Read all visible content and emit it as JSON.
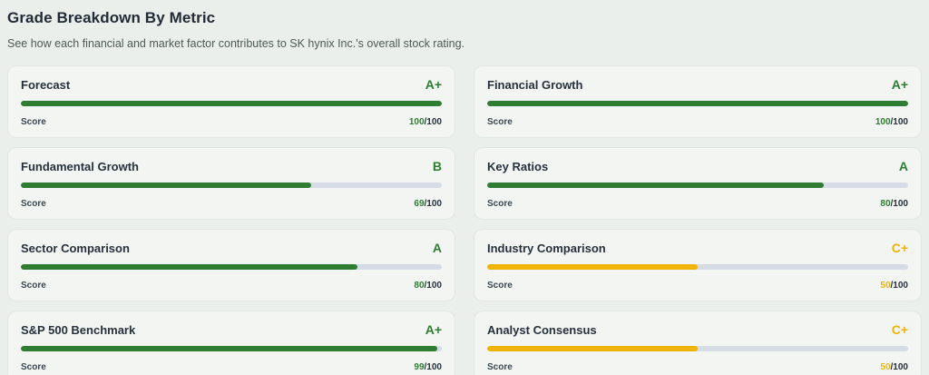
{
  "header": {
    "title": "Grade Breakdown By Metric",
    "subtitle": "See how each financial and market factor contributes to SK hynix Inc.'s overall stock rating."
  },
  "score_label": "Score",
  "score_denominator": "/100",
  "colors": {
    "green": "#2e7d32",
    "yellow": "#f0b308",
    "track": "#d6dce6",
    "dark_text": "#27313d"
  },
  "chart_data": {
    "type": "bar",
    "title": "Grade Breakdown By Metric",
    "categories": [
      "Forecast",
      "Financial Growth",
      "Fundamental Growth",
      "Key Ratios",
      "Sector Comparison",
      "Industry Comparison",
      "S&P 500 Benchmark",
      "Analyst Consensus"
    ],
    "values": [
      100,
      100,
      69,
      80,
      80,
      50,
      99,
      50
    ],
    "ylim": [
      0,
      100
    ]
  },
  "metrics": [
    {
      "name": "Forecast",
      "grade": "A+",
      "score": "100",
      "percent": 100,
      "tone": "green"
    },
    {
      "name": "Financial Growth",
      "grade": "A+",
      "score": "100",
      "percent": 100,
      "tone": "green"
    },
    {
      "name": "Fundamental Growth",
      "grade": "B",
      "score": "69",
      "percent": 69,
      "tone": "green"
    },
    {
      "name": "Key Ratios",
      "grade": "A",
      "score": "80",
      "percent": 80,
      "tone": "green"
    },
    {
      "name": "Sector Comparison",
      "grade": "A",
      "score": "80",
      "percent": 80,
      "tone": "green"
    },
    {
      "name": "Industry Comparison",
      "grade": "C+",
      "score": "50",
      "percent": 50,
      "tone": "yellow"
    },
    {
      "name": "S&P 500 Benchmark",
      "grade": "A+",
      "score": "99",
      "percent": 99,
      "tone": "green"
    },
    {
      "name": "Analyst Consensus",
      "grade": "C+",
      "score": "50",
      "percent": 50,
      "tone": "yellow"
    }
  ]
}
